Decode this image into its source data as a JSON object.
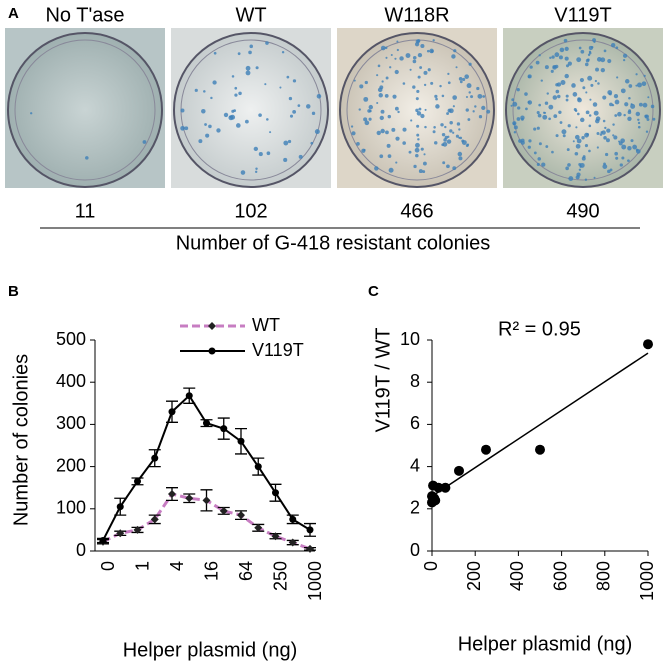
{
  "panel_a": {
    "label": "A",
    "plates": [
      {
        "name": "No T'ase",
        "count": "11"
      },
      {
        "name": "WT",
        "count": "102"
      },
      {
        "name": "W118R",
        "count": "466"
      },
      {
        "name": "V119T",
        "count": "490"
      }
    ],
    "caption": "Number of G-418 resistant colonies"
  },
  "chart_data": [
    {
      "type": "line",
      "panel": "B",
      "ylabel": "Number of colonies",
      "xlabel": "Helper plasmid (ng)",
      "categories": [
        "0",
        null,
        "1",
        null,
        "4",
        null,
        "16",
        null,
        "64",
        null,
        "250",
        null,
        "1000"
      ],
      "series": [
        {
          "name": "WT",
          "color": "#c77dc2",
          "dashed": true,
          "marker": "diamond",
          "values": [
            22,
            42,
            50,
            75,
            135,
            125,
            120,
            95,
            85,
            55,
            35,
            20,
            5
          ],
          "errors": [
            5,
            5,
            6,
            10,
            15,
            10,
            25,
            8,
            10,
            8,
            6,
            5,
            3
          ]
        },
        {
          "name": "V119T",
          "color": "#000000",
          "dashed": false,
          "marker": "circle",
          "values": [
            25,
            105,
            165,
            220,
            330,
            368,
            303,
            290,
            260,
            200,
            138,
            75,
            50
          ],
          "errors": [
            5,
            20,
            8,
            20,
            25,
            18,
            8,
            25,
            30,
            20,
            20,
            10,
            15
          ]
        }
      ],
      "ylim": [
        0,
        500
      ],
      "yticks": [
        0,
        100,
        200,
        300,
        400,
        500
      ]
    },
    {
      "type": "scatter",
      "panel": "C",
      "ylabel": "V119T / WT",
      "xlabel": "Helper plasmid (ng)",
      "annotation": "R² = 0.95",
      "trendline": true,
      "color": "#000000",
      "x": [
        0,
        0,
        5,
        10,
        15,
        30,
        62,
        125,
        250,
        500,
        1000
      ],
      "values": [
        2.3,
        2.6,
        3.1,
        2.5,
        2.4,
        3.0,
        3.0,
        3.8,
        4.8,
        4.8,
        9.8
      ],
      "xlim": [
        0,
        1000
      ],
      "xticks": [
        0,
        200,
        400,
        600,
        800,
        1000
      ],
      "ylim": [
        0,
        10
      ],
      "yticks": [
        0,
        2,
        4,
        6,
        8,
        10
      ]
    }
  ]
}
